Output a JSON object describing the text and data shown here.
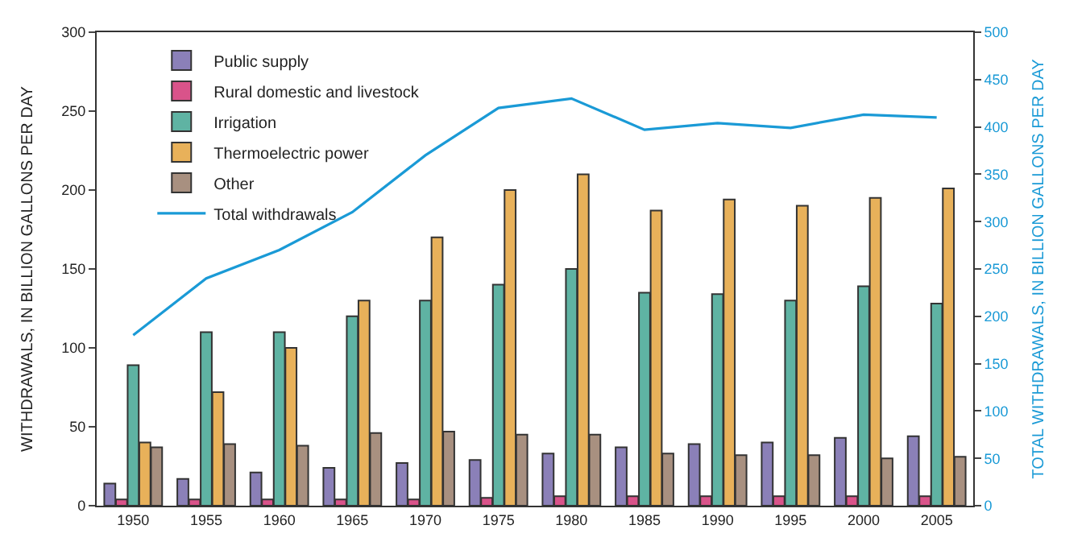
{
  "chart_data": {
    "type": "bar",
    "categories": [
      "1950",
      "1955",
      "1960",
      "1965",
      "1970",
      "1975",
      "1980",
      "1985",
      "1990",
      "1995",
      "2000",
      "2005"
    ],
    "ylabel": "WITHDRAWALS, IN BILLION GALLONS PER DAY",
    "y2label": "TOTAL WITHDRAWALS, IN BILLION GALLONS PER DAY",
    "ylim": [
      0,
      300
    ],
    "yticks": [
      0,
      50,
      100,
      150,
      200,
      250,
      300
    ],
    "y2lim": [
      0,
      500
    ],
    "y2ticks": [
      0,
      50,
      100,
      150,
      200,
      250,
      300,
      350,
      400,
      450,
      500
    ],
    "legend": "top left",
    "series": [
      {
        "name": "Public supply",
        "color": "#8b80b8",
        "values": [
          14,
          17,
          21,
          24,
          27,
          29,
          33,
          37,
          39,
          40,
          43,
          44
        ]
      },
      {
        "name": "Rural domestic and livestock",
        "color": "#d9538a",
        "values": [
          4,
          4,
          4,
          4,
          4,
          5,
          6,
          6,
          6,
          6,
          6,
          6
        ]
      },
      {
        "name": "Irrigation",
        "color": "#5fb3a3",
        "values": [
          89,
          110,
          110,
          120,
          130,
          140,
          150,
          135,
          134,
          130,
          139,
          128
        ]
      },
      {
        "name": "Thermoelectric power",
        "color": "#e8b15a",
        "values": [
          40,
          72,
          100,
          130,
          170,
          200,
          210,
          187,
          194,
          190,
          195,
          201
        ]
      },
      {
        "name": "Other",
        "color": "#a89080",
        "values": [
          37,
          39,
          38,
          46,
          47,
          45,
          45,
          33,
          32,
          32,
          30,
          31
        ]
      },
      {
        "name": "Total withdrawals",
        "type": "line",
        "axis": "y2",
        "color": "#1a9ad6",
        "values": [
          180,
          240,
          270,
          310,
          370,
          420,
          430,
          397,
          404,
          399,
          413,
          410
        ]
      }
    ]
  }
}
